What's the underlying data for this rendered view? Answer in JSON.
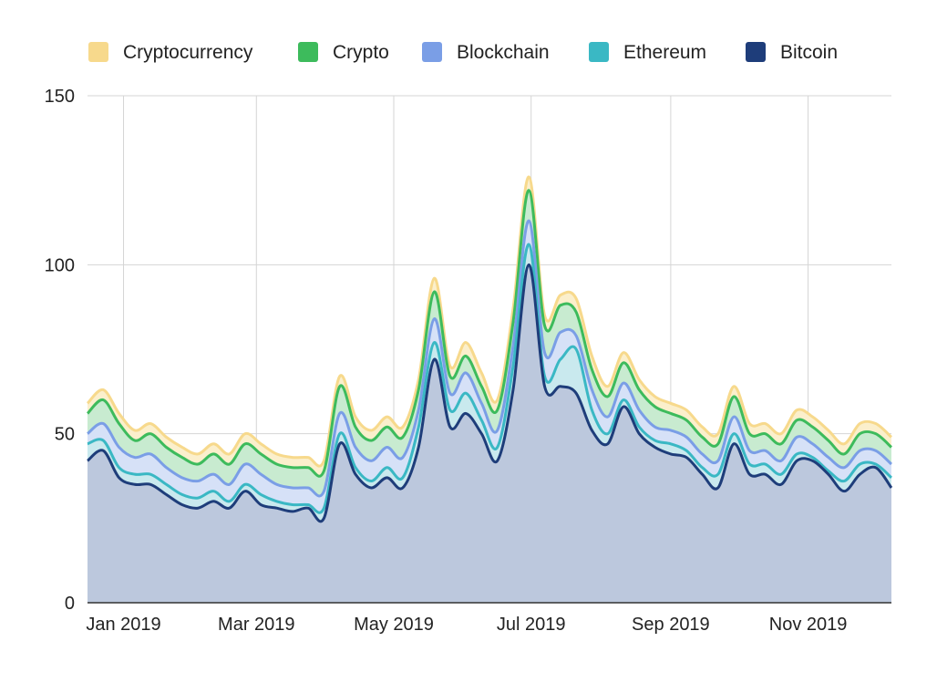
{
  "chart_data": {
    "type": "area",
    "stacked": false,
    "smooth": true,
    "title": "",
    "xlabel": "",
    "ylabel": "",
    "ylim": [
      0,
      150
    ],
    "yticks": [
      0,
      50,
      100,
      150
    ],
    "grid": true,
    "legend_position": "top",
    "x": [
      "2018-12-16",
      "2018-12-23",
      "2018-12-30",
      "2019-01-06",
      "2019-01-13",
      "2019-01-20",
      "2019-01-27",
      "2019-02-03",
      "2019-02-10",
      "2019-02-17",
      "2019-02-24",
      "2019-03-03",
      "2019-03-10",
      "2019-03-17",
      "2019-03-24",
      "2019-03-31",
      "2019-04-07",
      "2019-04-14",
      "2019-04-21",
      "2019-04-28",
      "2019-05-05",
      "2019-05-12",
      "2019-05-19",
      "2019-05-26",
      "2019-06-02",
      "2019-06-09",
      "2019-06-16",
      "2019-06-23",
      "2019-06-30",
      "2019-07-07",
      "2019-07-14",
      "2019-07-21",
      "2019-07-28",
      "2019-08-04",
      "2019-08-11",
      "2019-08-18",
      "2019-08-25",
      "2019-09-01",
      "2019-09-08",
      "2019-09-15",
      "2019-09-22",
      "2019-09-29",
      "2019-10-06",
      "2019-10-13",
      "2019-10-20",
      "2019-10-27",
      "2019-11-03",
      "2019-11-10",
      "2019-11-17",
      "2019-11-24",
      "2019-12-01",
      "2019-12-08"
    ],
    "x_tick_labels": [
      {
        "date": "2019-01-01",
        "label": "Jan 2019"
      },
      {
        "date": "2019-03-01",
        "label": "Mar 2019"
      },
      {
        "date": "2019-05-01",
        "label": "May 2019"
      },
      {
        "date": "2019-07-01",
        "label": "Jul 2019"
      },
      {
        "date": "2019-09-01",
        "label": "Sep 2019"
      },
      {
        "date": "2019-11-01",
        "label": "Nov 2019"
      }
    ],
    "series": [
      {
        "name": "Cryptocurrency",
        "color": "#f7d98c",
        "fill": "#fbefcc",
        "values": [
          59,
          63,
          56,
          51,
          53,
          49,
          46,
          44,
          47,
          44,
          50,
          47,
          44,
          43,
          43,
          42,
          67,
          55,
          51,
          55,
          52,
          66,
          96,
          70,
          77,
          68,
          60,
          87,
          126,
          85,
          91,
          90,
          73,
          64,
          74,
          66,
          61,
          59,
          57,
          52,
          50,
          64,
          53,
          53,
          50,
          57,
          55,
          51,
          47,
          53,
          53,
          49
        ]
      },
      {
        "name": "Crypto",
        "color": "#3dbb5c",
        "fill": "#c8ebd0",
        "values": [
          56,
          60,
          53,
          48,
          50,
          46,
          43,
          41,
          44,
          41,
          47,
          44,
          41,
          40,
          40,
          39,
          64,
          52,
          48,
          52,
          49,
          63,
          92,
          67,
          73,
          64,
          57,
          83,
          122,
          82,
          88,
          86,
          69,
          61,
          71,
          63,
          58,
          56,
          54,
          49,
          47,
          61,
          50,
          50,
          47,
          54,
          52,
          48,
          44,
          50,
          50,
          46
        ]
      },
      {
        "name": "Blockchain",
        "color": "#7a9ee6",
        "fill": "#d6e1f7",
        "values": [
          50,
          53,
          46,
          43,
          44,
          40,
          37,
          36,
          38,
          35,
          41,
          38,
          35,
          34,
          34,
          33,
          56,
          46,
          42,
          46,
          43,
          57,
          84,
          62,
          68,
          59,
          51,
          76,
          113,
          74,
          80,
          79,
          63,
          55,
          65,
          57,
          52,
          51,
          49,
          44,
          42,
          55,
          45,
          45,
          42,
          49,
          47,
          43,
          40,
          45,
          45,
          41
        ]
      },
      {
        "name": "Ethereum",
        "color": "#3ab8c4",
        "fill": "#c9e9ee",
        "values": [
          47,
          48,
          40,
          38,
          38,
          35,
          32,
          31,
          33,
          30,
          35,
          32,
          30,
          29,
          29,
          28,
          50,
          40,
          36,
          40,
          37,
          52,
          77,
          57,
          62,
          54,
          46,
          70,
          106,
          67,
          72,
          75,
          57,
          50,
          60,
          52,
          48,
          47,
          45,
          40,
          38,
          50,
          41,
          41,
          38,
          44,
          43,
          39,
          36,
          41,
          41,
          37
        ]
      },
      {
        "name": "Bitcoin",
        "color": "#1e3d7a",
        "fill": "#bcc8dd",
        "values": [
          42,
          45,
          37,
          35,
          35,
          32,
          29,
          28,
          30,
          28,
          33,
          29,
          28,
          27,
          28,
          25,
          47,
          38,
          34,
          37,
          34,
          46,
          72,
          52,
          56,
          50,
          42,
          63,
          100,
          64,
          64,
          62,
          51,
          47,
          58,
          50,
          46,
          44,
          43,
          38,
          34,
          47,
          38,
          38,
          35,
          42,
          42,
          38,
          33,
          38,
          40,
          34
        ]
      }
    ]
  }
}
